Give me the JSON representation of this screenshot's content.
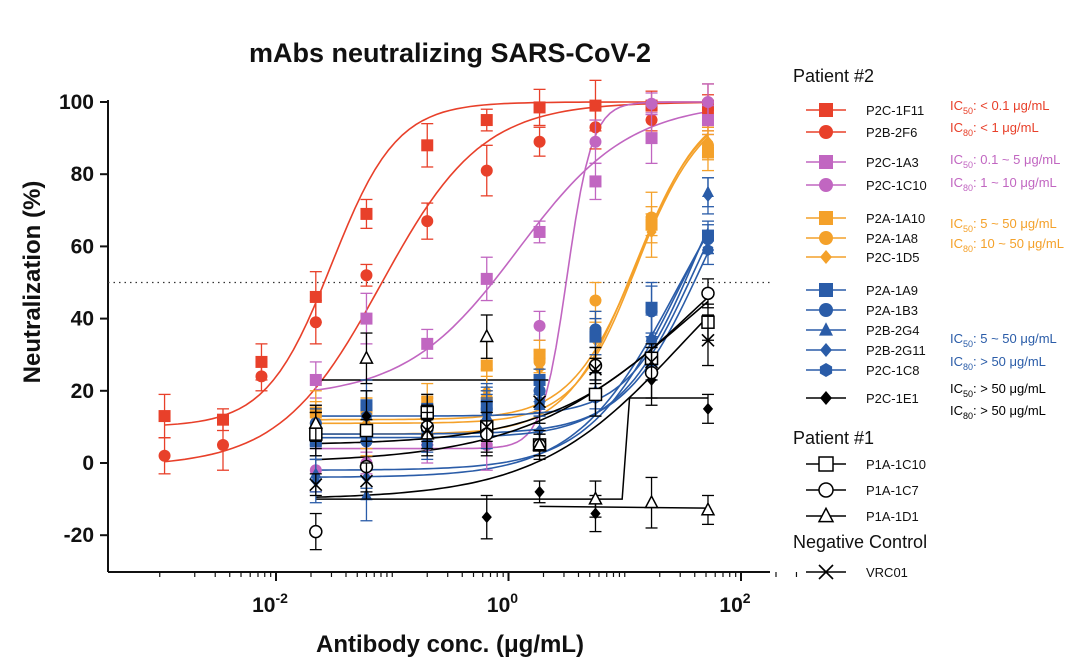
{
  "chart_data": {
    "type": "scatter",
    "title": "mAbs neutralizing SARS-CoV-2",
    "xlabel": "Antibody conc. (μg/mL)",
    "ylabel": "Neutralization (%)",
    "xscale": "log",
    "xlim": [
      0.00065,
      360
    ],
    "ylim": [
      -30,
      100
    ],
    "reference_line_y": 50,
    "y_ticks": [
      "-20",
      "0",
      "20",
      "40",
      "60",
      "80",
      "100"
    ],
    "x_ticks": [
      {
        "base": "10",
        "exp": "-2"
      },
      {
        "base": "10",
        "exp": "0"
      },
      {
        "base": "10",
        "exp": "2"
      }
    ],
    "legend_headers": [
      "Patient #2",
      "Patient #1",
      "Negative Control"
    ],
    "series": [
      {
        "name": "P2C-1F11",
        "group": "Patient #2",
        "color": "#e8402a",
        "marker": "square",
        "x": [
          0.0011,
          0.0035,
          0.0075,
          0.022,
          0.06,
          0.2,
          0.65,
          1.85,
          5.6,
          17,
          52
        ],
        "y": [
          13,
          12,
          28,
          46,
          69,
          88,
          95,
          98.5,
          99,
          99,
          99
        ]
      },
      {
        "name": "P2B-2F6",
        "group": "Patient #2",
        "color": "#e8402a",
        "marker": "circle",
        "x": [
          0.0011,
          0.0035,
          0.0075,
          0.022,
          0.06,
          0.2,
          0.65,
          1.85,
          5.6,
          17,
          52
        ],
        "y": [
          2,
          5,
          24,
          39,
          52,
          67,
          81,
          89,
          93,
          95,
          97
        ]
      },
      {
        "name": "P2C-1A3",
        "group": "Patient #2",
        "color": "#c166c1",
        "marker": "square",
        "x": [
          0.022,
          0.06,
          0.2,
          0.65,
          1.85,
          5.6,
          17,
          52
        ],
        "y": [
          23,
          40,
          33,
          51,
          64,
          78,
          90,
          95
        ]
      },
      {
        "name": "P2C-1C10",
        "group": "Patient #2",
        "color": "#c166c1",
        "marker": "circle",
        "x": [
          0.022,
          0.06,
          0.2,
          0.65,
          1.85,
          5.6,
          17,
          52
        ],
        "y": [
          -2,
          0,
          5,
          5,
          38,
          89,
          99.5,
          100
        ]
      },
      {
        "name": "P2A-1A10",
        "group": "Patient #2",
        "color": "#f4a12a",
        "marker": "square",
        "x": [
          0.022,
          0.06,
          0.2,
          0.65,
          1.85,
          5.6,
          17,
          52
        ],
        "y": [
          14,
          15,
          17,
          27,
          30,
          36,
          66,
          86
        ]
      },
      {
        "name": "P2A-1A8",
        "group": "Patient #2",
        "color": "#f4a12a",
        "marker": "circle",
        "x": [
          0.022,
          0.06,
          0.2,
          0.65,
          1.85,
          5.6,
          17,
          52
        ],
        "y": [
          11,
          9,
          8,
          18,
          28,
          45,
          68,
          88
        ]
      },
      {
        "name": "P2C-1D5",
        "group": "Patient #2",
        "color": "#f4a12a",
        "marker": "diamond",
        "x": [
          0.022,
          0.06,
          0.2,
          0.65,
          1.85,
          5.6,
          17,
          52
        ],
        "y": [
          12,
          11,
          14,
          20,
          26,
          34,
          64,
          89
        ]
      },
      {
        "name": "P2A-1A9",
        "group": "Patient #2",
        "color": "#2a5ca8",
        "marker": "square",
        "x": [
          0.022,
          0.06,
          0.2,
          0.65,
          1.85,
          5.6,
          17,
          52
        ],
        "y": [
          6,
          16,
          15,
          16,
          23,
          35,
          43,
          63
        ]
      },
      {
        "name": "P2A-1B3",
        "group": "Patient #2",
        "color": "#2a5ca8",
        "marker": "circle",
        "x": [
          0.022,
          0.06,
          0.2,
          0.65,
          1.85,
          5.6,
          17,
          52
        ],
        "y": [
          11,
          6,
          9,
          15,
          20,
          37,
          42,
          62
        ]
      },
      {
        "name": "P2B-2G4",
        "group": "Patient #2",
        "color": "#2a5ca8",
        "marker": "triangle",
        "x": [
          0.022,
          0.06,
          0.2,
          0.65,
          1.85,
          5.6,
          17,
          52
        ],
        "y": [
          -3,
          -9,
          7,
          13,
          16,
          20,
          35,
          75
        ]
      },
      {
        "name": "P2B-2G11",
        "group": "Patient #2",
        "color": "#2a5ca8",
        "marker": "diamond",
        "x": [
          0.022,
          0.06,
          0.2,
          0.65,
          1.85,
          5.6,
          17,
          52
        ],
        "y": [
          -5,
          -4,
          9,
          11,
          9,
          19,
          26,
          74
        ]
      },
      {
        "name": "P2C-1C8",
        "group": "Patient #2",
        "color": "#2a5ca8",
        "marker": "hexagon",
        "x": [
          0.022,
          0.06,
          0.2,
          0.65,
          1.85,
          5.6,
          17,
          52
        ],
        "y": [
          10,
          13,
          5,
          14,
          17,
          18,
          34,
          59
        ]
      },
      {
        "name": "P2C-1E1",
        "group": "Patient #2",
        "color": "#000000",
        "marker": "diamond",
        "x": [
          0.022,
          0.06,
          0.2,
          0.65,
          1.85,
          5.6,
          17,
          52
        ],
        "y": [
          9,
          13,
          12,
          -15,
          -8,
          -14,
          23,
          15
        ]
      },
      {
        "name": "P1A-1C10",
        "group": "Patient #1",
        "color": "#000000",
        "marker": "open-square",
        "x": [
          0.022,
          0.06,
          0.2,
          0.65,
          1.85,
          5.6,
          17,
          52
        ],
        "y": [
          8,
          9,
          14,
          10,
          5,
          19,
          29,
          39
        ]
      },
      {
        "name": "P1A-1C7",
        "group": "Patient #1",
        "color": "#000000",
        "marker": "open-circle",
        "x": [
          0.022,
          0.06,
          0.2,
          0.65,
          1.85,
          5.6,
          17,
          52
        ],
        "y": [
          -19,
          -1,
          10,
          8,
          5,
          27,
          25,
          47
        ]
      },
      {
        "name": "P1A-1D1",
        "group": "Patient #1",
        "color": "#000000",
        "marker": "open-triangle",
        "x": [
          0.022,
          0.06,
          0.2,
          0.65,
          1.85,
          5.6,
          17,
          52
        ],
        "y": [
          11,
          29,
          8,
          35,
          5,
          -10,
          -11,
          -13
        ]
      },
      {
        "name": "VRC01",
        "group": "Negative Control",
        "color": "#000000",
        "marker": "x",
        "x": [
          0.022,
          0.06,
          0.2,
          0.65,
          1.85,
          5.6,
          17,
          52
        ],
        "y": [
          -6,
          -5,
          9,
          10,
          17,
          26,
          28,
          34
        ]
      }
    ],
    "annotations": [
      {
        "color": "#e8402a",
        "ic50": "< 0.1 μg/mL",
        "ic80": "< 1 μg/mL"
      },
      {
        "color": "#c166c1",
        "ic50": "0.1 ~ 5 μg/mL",
        "ic80": "1 ~ 10 μg/mL"
      },
      {
        "color": "#f4a12a",
        "ic50": "5 ~ 50 μg/mL",
        "ic80": "10 ~ 50 μg/mL"
      },
      {
        "color": "#2a5ca8",
        "ic50": "5 ~ 50 μg/mL",
        "ic80": "> 50 μg/mL"
      },
      {
        "color": "#000000",
        "ic50": "> 50 μg/mL",
        "ic80": "> 50 μg/mL"
      }
    ],
    "ic_labels": {
      "ic": "IC",
      "sub50": "50",
      "sub80": "80",
      "colon": ":"
    }
  }
}
